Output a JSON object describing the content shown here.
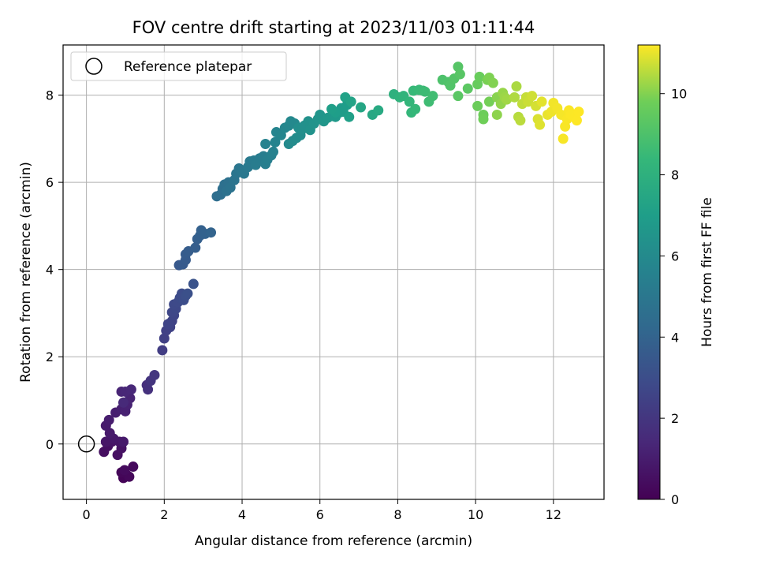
{
  "chart_data": {
    "type": "scatter",
    "title": "FOV centre drift starting at 2023/11/03 01:11:44",
    "xlabel": "Angular distance from reference (arcmin)",
    "ylabel": "Rotation from reference (arcmin)",
    "xlim": [
      -0.6,
      13.3
    ],
    "ylim": [
      -1.27,
      9.15
    ],
    "xticks": [
      0,
      2,
      4,
      6,
      8,
      10,
      12
    ],
    "yticks": [
      0,
      2,
      4,
      6,
      8
    ],
    "grid": true,
    "legend": {
      "placement": "upper-left",
      "entries": [
        "Reference platepar"
      ]
    },
    "reference_point": {
      "x": 0,
      "y": 0,
      "marker": "open-circle"
    },
    "colorbar": {
      "label": "Hours from first FF file",
      "colormap": "viridis",
      "range": [
        0,
        11.2
      ],
      "ticks": [
        0,
        2,
        4,
        6,
        8,
        10
      ]
    },
    "series": [
      {
        "points": [
          [
            0.95,
            -0.78,
            0.1
          ],
          [
            1.05,
            -0.72,
            0.15
          ],
          [
            0.9,
            -0.65,
            0.2
          ],
          [
            1.1,
            -0.75,
            0.25
          ],
          [
            1.2,
            -0.52,
            0.3
          ],
          [
            0.98,
            -0.6,
            0.35
          ],
          [
            0.45,
            -0.18,
            0.45
          ],
          [
            0.55,
            -0.05,
            0.5
          ],
          [
            0.8,
            -0.25,
            0.55
          ],
          [
            0.9,
            -0.1,
            0.6
          ],
          [
            0.65,
            0.05,
            0.65
          ],
          [
            0.85,
            0.05,
            0.7
          ],
          [
            0.5,
            0.05,
            0.75
          ],
          [
            0.7,
            0.12,
            0.8
          ],
          [
            0.95,
            0.05,
            0.85
          ],
          [
            0.6,
            0.25,
            0.9
          ],
          [
            0.5,
            0.42,
            0.95
          ],
          [
            0.58,
            0.55,
            1.0
          ],
          [
            0.75,
            0.72,
            1.05
          ],
          [
            0.9,
            0.8,
            1.1
          ],
          [
            1.0,
            0.75,
            1.15
          ],
          [
            1.05,
            0.9,
            1.2
          ],
          [
            1.12,
            1.05,
            1.25
          ],
          [
            0.9,
            1.2,
            1.3
          ],
          [
            1.0,
            1.2,
            1.35
          ],
          [
            1.15,
            1.25,
            1.4
          ],
          [
            0.95,
            0.95,
            1.5
          ],
          [
            1.55,
            1.35,
            1.7
          ],
          [
            1.58,
            1.25,
            1.8
          ],
          [
            1.65,
            1.45,
            1.9
          ],
          [
            1.75,
            1.58,
            2.0
          ],
          [
            1.95,
            2.15,
            2.3
          ],
          [
            2.0,
            2.42,
            2.4
          ],
          [
            2.05,
            2.6,
            2.45
          ],
          [
            2.15,
            2.68,
            2.5
          ],
          [
            2.2,
            2.82,
            2.55
          ],
          [
            2.1,
            2.75,
            2.6
          ],
          [
            2.25,
            2.95,
            2.65
          ],
          [
            2.2,
            3.02,
            2.7
          ],
          [
            2.3,
            3.1,
            2.75
          ],
          [
            2.25,
            3.2,
            2.8
          ],
          [
            2.35,
            3.25,
            2.85
          ],
          [
            2.4,
            3.35,
            2.9
          ],
          [
            2.45,
            3.45,
            2.95
          ],
          [
            2.5,
            3.3,
            3.0
          ],
          [
            2.55,
            3.4,
            3.05
          ],
          [
            2.6,
            3.45,
            3.1
          ],
          [
            2.75,
            3.67,
            3.2
          ],
          [
            2.38,
            4.1,
            3.5
          ],
          [
            2.48,
            4.12,
            3.55
          ],
          [
            2.55,
            4.22,
            3.6
          ],
          [
            2.55,
            4.35,
            3.65
          ],
          [
            2.62,
            4.42,
            3.7
          ],
          [
            2.8,
            4.5,
            3.75
          ],
          [
            2.85,
            4.7,
            3.8
          ],
          [
            2.92,
            4.78,
            3.85
          ],
          [
            2.95,
            4.9,
            3.9
          ],
          [
            3.05,
            4.82,
            3.95
          ],
          [
            3.2,
            4.85,
            4.0
          ],
          [
            3.35,
            5.68,
            4.5
          ],
          [
            3.45,
            5.72,
            4.55
          ],
          [
            3.5,
            5.85,
            4.6
          ],
          [
            3.55,
            5.95,
            4.65
          ],
          [
            3.65,
            6.0,
            4.7
          ],
          [
            3.6,
            5.8,
            4.75
          ],
          [
            3.7,
            5.88,
            4.8
          ],
          [
            3.8,
            6.05,
            4.85
          ],
          [
            3.85,
            6.2,
            4.9
          ],
          [
            3.92,
            6.32,
            4.95
          ],
          [
            4.0,
            6.25,
            5.0
          ],
          [
            4.05,
            6.2,
            5.05
          ],
          [
            4.15,
            6.35,
            5.1
          ],
          [
            4.2,
            6.48,
            5.15
          ],
          [
            4.3,
            6.5,
            5.2
          ],
          [
            4.35,
            6.4,
            5.25
          ],
          [
            4.45,
            6.55,
            5.3
          ],
          [
            4.55,
            6.6,
            5.35
          ],
          [
            4.6,
            6.42,
            5.4
          ],
          [
            4.65,
            6.52,
            5.45
          ],
          [
            4.75,
            6.62,
            5.5
          ],
          [
            4.8,
            6.7,
            5.55
          ],
          [
            4.6,
            6.88,
            5.6
          ],
          [
            4.85,
            6.92,
            5.65
          ],
          [
            4.88,
            7.15,
            5.7
          ],
          [
            5.0,
            7.08,
            5.75
          ],
          [
            5.1,
            7.25,
            5.8
          ],
          [
            5.2,
            7.3,
            5.85
          ],
          [
            5.25,
            7.4,
            5.9
          ],
          [
            5.35,
            7.35,
            5.95
          ],
          [
            5.2,
            6.88,
            6.0
          ],
          [
            5.3,
            6.95,
            6.05
          ],
          [
            5.4,
            7.02,
            6.1
          ],
          [
            5.5,
            7.08,
            6.15
          ],
          [
            5.45,
            7.25,
            6.2
          ],
          [
            5.55,
            7.22,
            6.25
          ],
          [
            5.6,
            7.3,
            6.3
          ],
          [
            5.7,
            7.4,
            6.35
          ],
          [
            5.75,
            7.2,
            6.4
          ],
          [
            5.85,
            7.35,
            6.45
          ],
          [
            5.95,
            7.45,
            6.5
          ],
          [
            6.0,
            7.55,
            6.55
          ],
          [
            6.1,
            7.4,
            6.6
          ],
          [
            6.2,
            7.48,
            6.65
          ],
          [
            6.3,
            7.52,
            6.7
          ],
          [
            6.4,
            7.5,
            6.75
          ],
          [
            6.5,
            7.6,
            6.8
          ],
          [
            6.55,
            7.7,
            6.85
          ],
          [
            6.6,
            7.62,
            6.9
          ],
          [
            6.7,
            7.78,
            6.95
          ],
          [
            6.4,
            7.6,
            7.0
          ],
          [
            6.3,
            7.68,
            7.05
          ],
          [
            6.75,
            7.5,
            7.1
          ],
          [
            6.65,
            7.95,
            7.2
          ],
          [
            6.8,
            7.85,
            7.3
          ],
          [
            7.05,
            7.72,
            7.4
          ],
          [
            7.35,
            7.55,
            7.5
          ],
          [
            7.5,
            7.65,
            7.6
          ],
          [
            7.9,
            8.02,
            8.0
          ],
          [
            8.05,
            7.95,
            8.1
          ],
          [
            8.15,
            7.98,
            8.2
          ],
          [
            8.3,
            7.85,
            8.3
          ],
          [
            8.35,
            7.6,
            8.35
          ],
          [
            8.45,
            7.68,
            8.4
          ],
          [
            8.4,
            8.1,
            8.45
          ],
          [
            8.55,
            8.12,
            8.5
          ],
          [
            8.65,
            8.1,
            8.55
          ],
          [
            8.7,
            8.08,
            8.6
          ],
          [
            8.8,
            7.85,
            8.65
          ],
          [
            8.9,
            7.98,
            8.7
          ],
          [
            9.15,
            8.35,
            9.0
          ],
          [
            9.3,
            8.3,
            9.05
          ],
          [
            9.35,
            8.22,
            9.1
          ],
          [
            9.45,
            8.38,
            9.15
          ],
          [
            9.55,
            8.65,
            9.2
          ],
          [
            9.6,
            8.48,
            9.25
          ],
          [
            9.55,
            7.98,
            9.3
          ],
          [
            9.8,
            8.15,
            9.35
          ],
          [
            10.05,
            8.25,
            9.6
          ],
          [
            10.1,
            8.42,
            9.65
          ],
          [
            10.05,
            7.75,
            9.7
          ],
          [
            10.2,
            7.55,
            9.75
          ],
          [
            10.2,
            7.45,
            9.8
          ],
          [
            10.35,
            7.85,
            9.85
          ],
          [
            10.3,
            8.35,
            9.9
          ],
          [
            10.35,
            8.4,
            9.95
          ],
          [
            10.45,
            8.28,
            10.0
          ],
          [
            10.55,
            7.95,
            10.05
          ],
          [
            10.55,
            7.55,
            10.1
          ],
          [
            10.65,
            7.8,
            10.15
          ],
          [
            10.7,
            8.05,
            10.2
          ],
          [
            10.75,
            7.95,
            10.25
          ],
          [
            10.8,
            7.9,
            10.3
          ],
          [
            11.05,
            8.2,
            10.4
          ],
          [
            11.0,
            7.95,
            10.45
          ],
          [
            11.1,
            7.5,
            10.5
          ],
          [
            11.15,
            7.42,
            10.55
          ],
          [
            11.2,
            7.8,
            10.6
          ],
          [
            11.3,
            7.95,
            10.65
          ],
          [
            11.35,
            7.85,
            10.7
          ],
          [
            11.45,
            7.98,
            10.75
          ],
          [
            11.55,
            7.75,
            10.8
          ],
          [
            11.6,
            7.45,
            10.85
          ],
          [
            11.65,
            7.32,
            10.9
          ],
          [
            11.7,
            7.85,
            10.95
          ],
          [
            11.85,
            7.55,
            11.0
          ],
          [
            11.95,
            7.62,
            11.05
          ],
          [
            12.0,
            7.82,
            11.08
          ],
          [
            12.1,
            7.7,
            11.1
          ],
          [
            12.2,
            7.55,
            11.12
          ],
          [
            12.25,
            7.0,
            11.14
          ],
          [
            12.3,
            7.28,
            11.15
          ],
          [
            12.35,
            7.45,
            11.16
          ],
          [
            12.4,
            7.65,
            11.17
          ],
          [
            12.45,
            7.55,
            11.18
          ],
          [
            12.55,
            7.48,
            11.19
          ],
          [
            12.6,
            7.42,
            11.2
          ],
          [
            12.65,
            7.62,
            11.2
          ]
        ]
      }
    ]
  }
}
